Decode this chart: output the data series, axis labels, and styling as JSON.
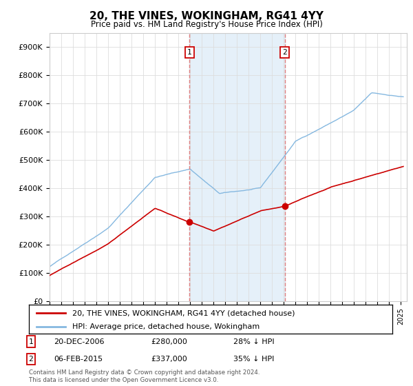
{
  "title": "20, THE VINES, WOKINGHAM, RG41 4YY",
  "subtitle": "Price paid vs. HM Land Registry's House Price Index (HPI)",
  "ylim": [
    0,
    950000
  ],
  "yticks": [
    0,
    100000,
    200000,
    300000,
    400000,
    500000,
    600000,
    700000,
    800000,
    900000
  ],
  "ytick_labels": [
    "£0",
    "£100K",
    "£200K",
    "£300K",
    "£400K",
    "£500K",
    "£600K",
    "£700K",
    "£800K",
    "£900K"
  ],
  "hpi_color": "#85b8e0",
  "hpi_fill_color": "#d0e4f5",
  "price_color": "#cc0000",
  "vline_color": "#e08080",
  "marker1_x": 2006.95,
  "marker2_x": 2015.08,
  "marker1_y": 280000,
  "marker2_y": 337000,
  "marker1_label": "20-DEC-2006",
  "marker1_price": "£280,000",
  "marker1_pct": "28% ↓ HPI",
  "marker2_label": "06-FEB-2015",
  "marker2_price": "£337,000",
  "marker2_pct": "35% ↓ HPI",
  "legend_line1": "20, THE VINES, WOKINGHAM, RG41 4YY (detached house)",
  "legend_line2": "HPI: Average price, detached house, Wokingham",
  "footer": "Contains HM Land Registry data © Crown copyright and database right 2024.\nThis data is licensed under the Open Government Licence v3.0.",
  "background_color": "#ffffff",
  "grid_color": "#dddddd",
  "xlim_left": 1995.0,
  "xlim_right": 2025.5
}
